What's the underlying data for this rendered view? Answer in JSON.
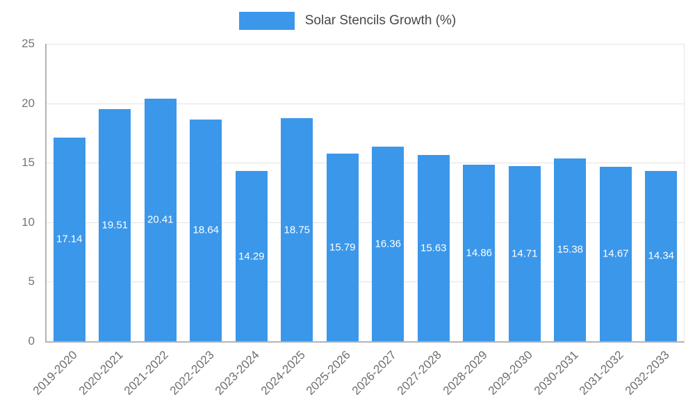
{
  "chart_data": {
    "type": "bar",
    "title": "Solar Stencils Growth (%)",
    "categories": [
      "2019-2020",
      "2020-2021",
      "2021-2022",
      "2022-2023",
      "2023-2024",
      "2024-2025",
      "2025-2026",
      "2026-2027",
      "2027-2028",
      "2028-2029",
      "2029-2030",
      "2030-2031",
      "2031-2032",
      "2032-2033"
    ],
    "values": [
      17.14,
      19.51,
      20.41,
      18.64,
      14.29,
      18.75,
      15.79,
      16.36,
      15.63,
      14.86,
      14.71,
      15.38,
      14.67,
      14.34
    ],
    "value_labels": [
      "17.14",
      "19.51",
      "20.41",
      "18.64",
      "14.29",
      "18.75",
      "15.79",
      "16.36",
      "15.63",
      "14.86",
      "14.71",
      "15.38",
      "14.67",
      "14.34"
    ],
    "xlabel": "",
    "ylabel": "",
    "ylim": [
      0,
      25
    ],
    "yticks": [
      0,
      5,
      10,
      15,
      20,
      25
    ],
    "grid": true,
    "legend_position": "top",
    "bar_color": "#3b97ea",
    "value_label_color": "#ffffff"
  }
}
